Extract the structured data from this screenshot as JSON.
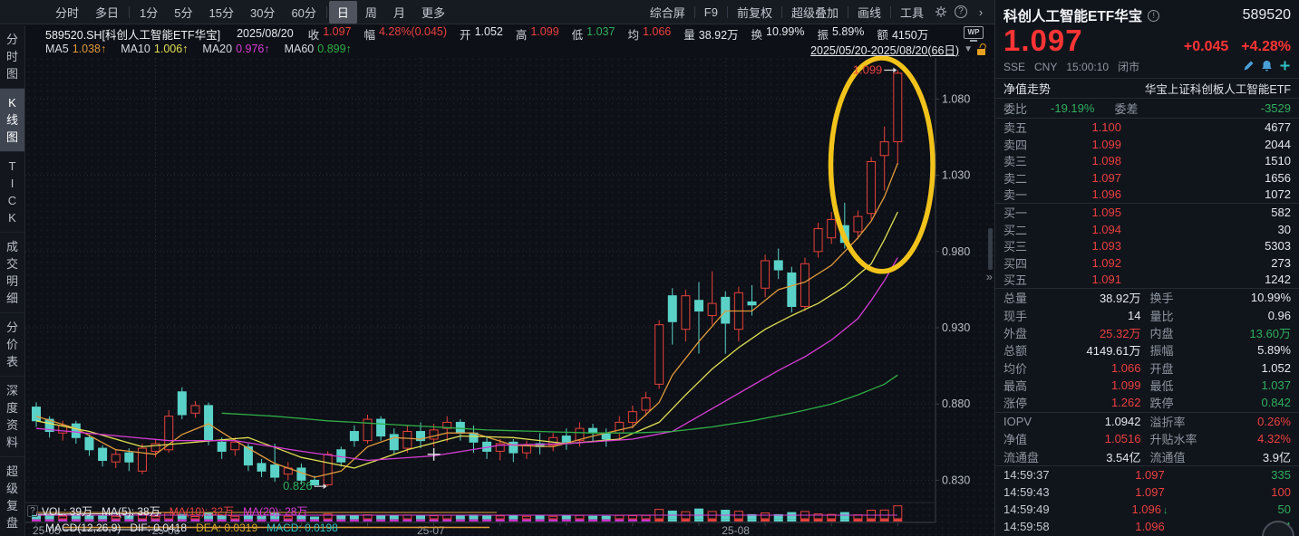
{
  "colors": {
    "up_red": "#e8413c",
    "down_cyan": "#5ad2c8",
    "grid": "#262c36",
    "axis": "#3a4048",
    "tick_text": "#b7bdc7",
    "highlight_ellipse": "#f2c31b",
    "green_text": "#2fae5e",
    "panel_red": "#ea4040"
  },
  "topbar": {
    "period_tabs": [
      "分时",
      "多日",
      "1分",
      "5分",
      "15分",
      "30分",
      "60分",
      "日",
      "周",
      "月",
      "更多"
    ],
    "active_tab": "日",
    "right_items": [
      "综合屏",
      "F9",
      "前复权",
      "超级叠加",
      "画线",
      "工具"
    ],
    "icons": {
      "gear": "gear",
      "help": "?",
      "more": "›"
    }
  },
  "info_bar": {
    "symbol": "589520.SH[科创人工智能ETF华宝]",
    "date": "2025/08/20",
    "fields": [
      {
        "label": "收",
        "value": "1.097",
        "c": "r"
      },
      {
        "label": "幅",
        "value": "4.28%(0.045)",
        "c": "r"
      },
      {
        "label": "开",
        "value": "1.052",
        "c": "w"
      },
      {
        "label": "高",
        "value": "1.099",
        "c": "r"
      },
      {
        "label": "低",
        "value": "1.037",
        "c": "g"
      },
      {
        "label": "均",
        "value": "1.066",
        "c": "r"
      },
      {
        "label": "量",
        "value": "38.92万",
        "c": "w"
      },
      {
        "label": "换",
        "value": "10.99%",
        "c": "w"
      },
      {
        "label": "振",
        "value": "5.89%",
        "c": "w"
      },
      {
        "label": "额",
        "value": "4150万",
        "c": "w"
      }
    ],
    "wp_badge": "WP"
  },
  "ma_bar": {
    "items": [
      {
        "name": "MA5",
        "value": "1.038↑",
        "color": "#e09a3c"
      },
      {
        "name": "MA10",
        "value": "1.006↑",
        "color": "#e0e052"
      },
      {
        "name": "MA20",
        "value": "0.976↑",
        "color": "#d63cd6"
      },
      {
        "name": "MA60",
        "value": "0.899↑",
        "color": "#2fae46"
      }
    ],
    "date_range": "2025/05/20-2025/08/20(66日)"
  },
  "sidebar": {
    "items": [
      {
        "label": "分时图",
        "active": false
      },
      {
        "label": "K线图",
        "active": true
      },
      {
        "label": "TICK",
        "active": false
      },
      {
        "label": "成交明细",
        "active": false
      },
      {
        "label": "分价表",
        "active": false
      },
      {
        "label": "深度资料",
        "active": false
      },
      {
        "label": "超级复盘",
        "active": false
      }
    ]
  },
  "vol_pane": {
    "help": "?",
    "parts": [
      {
        "t": "VOL: 39万",
        "c": "#e4e8ed"
      },
      {
        "t": "MA(5): 38万",
        "c": "#e4e8ed"
      },
      {
        "t": "MA(10): 32万",
        "c": "#ea4040"
      },
      {
        "t": "MA(20): 28万",
        "c": "#d63cd6"
      }
    ]
  },
  "macd_pane": {
    "parts": [
      {
        "t": "MACD(12,26,9)",
        "c": "#e4e8ed"
      },
      {
        "t": "DIF: 0.0418",
        "c": "#e4e8ed"
      },
      {
        "t": "DEA: 0.0319",
        "c": "#d8a82a"
      },
      {
        "t": "MACD: 0.0198",
        "c": "#2fc4c4"
      }
    ]
  },
  "chart_data": {
    "type": "candlestick",
    "symbol": "589520.SH",
    "period": "日K",
    "date_range": "2025/05/20-2025/08/20",
    "days": 66,
    "ylim": [
      0.816,
      1.107
    ],
    "y_ticks": [
      "1.080",
      "1.030",
      "0.980",
      "0.930",
      "0.880",
      "0.830"
    ],
    "x_labels": [
      {
        "index": 0,
        "label": "25-05"
      },
      {
        "index": 9,
        "label": "25-06"
      },
      {
        "index": 29,
        "label": "25-07"
      },
      {
        "index": 52,
        "label": "25-08"
      }
    ],
    "candles": [
      [
        0.878,
        0.869,
        0.865,
        0.881
      ],
      [
        0.87,
        0.862,
        0.858,
        0.872
      ],
      [
        0.861,
        0.866,
        0.856,
        0.869
      ],
      [
        0.867,
        0.858,
        0.854,
        0.869
      ],
      [
        0.858,
        0.85,
        0.846,
        0.86
      ],
      [
        0.851,
        0.843,
        0.839,
        0.853
      ],
      [
        0.842,
        0.847,
        0.838,
        0.85
      ],
      [
        0.848,
        0.842,
        0.836,
        0.851
      ],
      [
        0.836,
        0.851,
        0.834,
        0.854
      ],
      [
        0.849,
        0.854,
        0.845,
        0.857
      ],
      [
        0.85,
        0.872,
        0.848,
        0.876
      ],
      [
        0.888,
        0.873,
        0.87,
        0.891
      ],
      [
        0.874,
        0.879,
        0.871,
        0.882
      ],
      [
        0.879,
        0.856,
        0.853,
        0.881
      ],
      [
        0.855,
        0.849,
        0.844,
        0.858
      ],
      [
        0.85,
        0.855,
        0.846,
        0.858
      ],
      [
        0.852,
        0.84,
        0.836,
        0.854
      ],
      [
        0.841,
        0.836,
        0.832,
        0.844
      ],
      [
        0.84,
        0.832,
        0.829,
        0.854
      ],
      [
        0.834,
        0.838,
        0.83,
        0.842
      ],
      [
        0.838,
        0.83,
        0.827,
        0.841
      ],
      [
        0.83,
        0.827,
        0.826,
        0.833
      ],
      [
        0.827,
        0.847,
        0.826,
        0.849
      ],
      [
        0.85,
        0.842,
        0.839,
        0.852
      ],
      [
        0.862,
        0.856,
        0.852,
        0.866
      ],
      [
        0.856,
        0.87,
        0.854,
        0.873
      ],
      [
        0.87,
        0.859,
        0.856,
        0.872
      ],
      [
        0.86,
        0.85,
        0.847,
        0.864
      ],
      [
        0.851,
        0.862,
        0.848,
        0.866
      ],
      [
        0.862,
        0.856,
        0.851,
        0.868
      ],
      [
        0.857,
        0.863,
        0.852,
        0.867
      ],
      [
        0.864,
        0.868,
        0.855,
        0.872
      ],
      [
        0.868,
        0.861,
        0.856,
        0.87
      ],
      [
        0.861,
        0.855,
        0.848,
        0.866
      ],
      [
        0.855,
        0.849,
        0.844,
        0.858
      ],
      [
        0.849,
        0.854,
        0.843,
        0.857
      ],
      [
        0.855,
        0.848,
        0.842,
        0.857
      ],
      [
        0.848,
        0.853,
        0.844,
        0.856
      ],
      [
        0.854,
        0.852,
        0.847,
        0.861
      ],
      [
        0.853,
        0.858,
        0.849,
        0.861
      ],
      [
        0.859,
        0.855,
        0.85,
        0.864
      ],
      [
        0.856,
        0.864,
        0.852,
        0.868
      ],
      [
        0.864,
        0.861,
        0.855,
        0.867
      ],
      [
        0.861,
        0.857,
        0.852,
        0.864
      ],
      [
        0.861,
        0.868,
        0.856,
        0.872
      ],
      [
        0.868,
        0.875,
        0.864,
        0.879
      ],
      [
        0.876,
        0.884,
        0.872,
        0.888
      ],
      [
        0.893,
        0.932,
        0.89,
        0.935
      ],
      [
        0.951,
        0.934,
        0.919,
        0.956
      ],
      [
        0.929,
        0.951,
        0.921,
        0.955
      ],
      [
        0.948,
        0.941,
        0.913,
        0.96
      ],
      [
        0.938,
        0.946,
        0.932,
        0.967
      ],
      [
        0.95,
        0.933,
        0.913,
        0.954
      ],
      [
        0.929,
        0.953,
        0.921,
        0.957
      ],
      [
        0.947,
        0.945,
        0.938,
        0.958
      ],
      [
        0.956,
        0.974,
        0.95,
        0.978
      ],
      [
        0.974,
        0.968,
        0.962,
        0.982
      ],
      [
        0.966,
        0.944,
        0.94,
        0.97
      ],
      [
        0.944,
        0.972,
        0.941,
        0.976
      ],
      [
        0.98,
        0.995,
        0.976,
        0.999
      ],
      [
        0.989,
        1.001,
        0.985,
        1.006
      ],
      [
        0.997,
        0.986,
        0.982,
        1.012
      ],
      [
        0.993,
        1.003,
        0.988,
        1.007
      ],
      [
        1.005,
        1.039,
        1.001,
        1.042
      ],
      [
        1.043,
        1.052,
        1.02,
        1.062
      ],
      [
        1.052,
        1.097,
        1.037,
        1.099
      ]
    ],
    "ma_lines": [
      {
        "name": "MA5",
        "color": "#e09a3c",
        "points": [
          [
            0,
            0.872
          ],
          [
            3,
            0.864
          ],
          [
            6,
            0.85
          ],
          [
            9,
            0.847
          ],
          [
            11,
            0.86
          ],
          [
            13,
            0.867
          ],
          [
            15,
            0.856
          ],
          [
            18,
            0.841
          ],
          [
            21,
            0.832
          ],
          [
            23,
            0.836
          ],
          [
            25,
            0.852
          ],
          [
            27,
            0.858
          ],
          [
            29,
            0.857
          ],
          [
            31,
            0.861
          ],
          [
            33,
            0.861
          ],
          [
            36,
            0.853
          ],
          [
            39,
            0.852
          ],
          [
            42,
            0.859
          ],
          [
            45,
            0.865
          ],
          [
            47,
            0.881
          ],
          [
            48,
            0.899
          ],
          [
            50,
            0.921
          ],
          [
            52,
            0.941
          ],
          [
            54,
            0.941
          ],
          [
            56,
            0.955
          ],
          [
            58,
            0.96
          ],
          [
            60,
            0.971
          ],
          [
            62,
            0.989
          ],
          [
            63,
            1.0
          ],
          [
            64,
            1.016
          ],
          [
            65,
            1.038
          ]
        ]
      },
      {
        "name": "MA10",
        "color": "#e0e052",
        "points": [
          [
            0,
            0.869
          ],
          [
            4,
            0.862
          ],
          [
            8,
            0.852
          ],
          [
            12,
            0.855
          ],
          [
            16,
            0.858
          ],
          [
            20,
            0.845
          ],
          [
            24,
            0.838
          ],
          [
            28,
            0.85
          ],
          [
            32,
            0.859
          ],
          [
            36,
            0.858
          ],
          [
            40,
            0.854
          ],
          [
            44,
            0.857
          ],
          [
            47,
            0.868
          ],
          [
            49,
            0.886
          ],
          [
            51,
            0.903
          ],
          [
            53,
            0.917
          ],
          [
            55,
            0.929
          ],
          [
            57,
            0.938
          ],
          [
            59,
            0.946
          ],
          [
            61,
            0.957
          ],
          [
            63,
            0.972
          ],
          [
            64,
            0.988
          ],
          [
            65,
            1.006
          ]
        ]
      },
      {
        "name": "MA20",
        "color": "#d63cd6",
        "points": [
          [
            0,
            0.864
          ],
          [
            5,
            0.86
          ],
          [
            10,
            0.856
          ],
          [
            15,
            0.856
          ],
          [
            20,
            0.849
          ],
          [
            25,
            0.843
          ],
          [
            30,
            0.846
          ],
          [
            35,
            0.853
          ],
          [
            40,
            0.854
          ],
          [
            45,
            0.857
          ],
          [
            48,
            0.862
          ],
          [
            50,
            0.872
          ],
          [
            52,
            0.882
          ],
          [
            54,
            0.892
          ],
          [
            56,
            0.902
          ],
          [
            58,
            0.911
          ],
          [
            60,
            0.922
          ],
          [
            62,
            0.936
          ],
          [
            63,
            0.948
          ],
          [
            64,
            0.961
          ],
          [
            65,
            0.976
          ]
        ]
      },
      {
        "name": "MA60",
        "color": "#2fae46",
        "points": [
          [
            14,
            0.874
          ],
          [
            18,
            0.872
          ],
          [
            22,
            0.869
          ],
          [
            26,
            0.867
          ],
          [
            30,
            0.865
          ],
          [
            34,
            0.863
          ],
          [
            38,
            0.862
          ],
          [
            42,
            0.861
          ],
          [
            45,
            0.861
          ],
          [
            48,
            0.862
          ],
          [
            51,
            0.865
          ],
          [
            54,
            0.869
          ],
          [
            57,
            0.874
          ],
          [
            60,
            0.88
          ],
          [
            62,
            0.886
          ],
          [
            64,
            0.893
          ],
          [
            65,
            0.899
          ]
        ]
      }
    ],
    "annotations": [
      {
        "text": "1.099",
        "index": 65,
        "price": 1.099,
        "color": "#ea4040"
      },
      {
        "text": "0.826",
        "index": 22,
        "price": 0.826,
        "color": "#2fae5e"
      }
    ],
    "ellipse_highlight": {
      "index": 63.8,
      "price": 1.037,
      "rx_days": 3.85,
      "ry_price": 0.07
    },
    "crosshair": {
      "index": 30,
      "price": 0.847
    }
  },
  "quote_panel": {
    "name": "科创人工智能ETF华宝",
    "info_icon": "!",
    "code": "589520",
    "price": "1.097",
    "change": "+0.045",
    "change_pct": "+4.28%",
    "exchange": "SSE",
    "currency": "CNY",
    "time": "15:00:10",
    "status": "闭市",
    "nav_row": {
      "label": "净值走势",
      "value": "华宝上证科创板人工智能ETF"
    },
    "weibi": {
      "label1": "委比",
      "value1": "-19.19%",
      "label2": "委差",
      "value2": "-3529"
    },
    "asks": [
      {
        "l": "卖五",
        "p": "1.100",
        "v": "4677"
      },
      {
        "l": "卖四",
        "p": "1.099",
        "v": "2044"
      },
      {
        "l": "卖三",
        "p": "1.098",
        "v": "1510"
      },
      {
        "l": "卖二",
        "p": "1.097",
        "v": "1656"
      },
      {
        "l": "卖一",
        "p": "1.096",
        "v": "1072"
      }
    ],
    "bids": [
      {
        "l": "买一",
        "p": "1.095",
        "v": "582"
      },
      {
        "l": "买二",
        "p": "1.094",
        "v": "30"
      },
      {
        "l": "买三",
        "p": "1.093",
        "v": "5303"
      },
      {
        "l": "买四",
        "p": "1.092",
        "v": "273"
      },
      {
        "l": "买五",
        "p": "1.091",
        "v": "1242"
      }
    ],
    "stats_groups": [
      [
        [
          {
            "l": "总量",
            "v": "38.92万",
            "c": "w"
          },
          {
            "l": "换手",
            "v": "10.99%",
            "c": "w"
          }
        ],
        [
          {
            "l": "现手",
            "v": "14",
            "c": "w"
          },
          {
            "l": "量比",
            "v": "0.96",
            "c": "w"
          }
        ],
        [
          {
            "l": "外盘",
            "v": "25.32万",
            "c": "r"
          },
          {
            "l": "内盘",
            "v": "13.60万",
            "c": "g"
          }
        ],
        [
          {
            "l": "总额",
            "v": "4149.61万",
            "c": "w"
          },
          {
            "l": "振幅",
            "v": "5.89%",
            "c": "w"
          }
        ],
        [
          {
            "l": "均价",
            "v": "1.066",
            "c": "r"
          },
          {
            "l": "开盘",
            "v": "1.052",
            "c": "w"
          }
        ],
        [
          {
            "l": "最高",
            "v": "1.099",
            "c": "r"
          },
          {
            "l": "最低",
            "v": "1.037",
            "c": "g"
          }
        ],
        [
          {
            "l": "涨停",
            "v": "1.262",
            "c": "r"
          },
          {
            "l": "跌停",
            "v": "0.842",
            "c": "g"
          }
        ]
      ],
      [
        [
          {
            "l": "IOPV",
            "v": "1.0942",
            "c": "w"
          },
          {
            "l": "溢折率",
            "v": "0.26%",
            "c": "r"
          }
        ],
        [
          {
            "l": "净值",
            "v": "1.0516",
            "c": "r"
          },
          {
            "l": "升贴水率",
            "v": "4.32%",
            "c": "r"
          }
        ],
        [
          {
            "l": "流通盘",
            "v": "3.54亿",
            "c": "w"
          },
          {
            "l": "流通值",
            "v": "3.9亿",
            "c": "w"
          }
        ]
      ]
    ],
    "ticks": [
      {
        "t": "14:59:37",
        "p": "1.097",
        "v": "335",
        "vc": "g",
        "arrow": ""
      },
      {
        "t": "14:59:43",
        "p": "1.097",
        "v": "100",
        "vc": "r",
        "arrow": ""
      },
      {
        "t": "14:59:49",
        "p": "1.096",
        "v": "50",
        "vc": "g",
        "arrow": "↓"
      },
      {
        "t": "14:59:58",
        "p": "1.096",
        "v": "14",
        "vc": "g",
        "arrow": ""
      }
    ]
  }
}
